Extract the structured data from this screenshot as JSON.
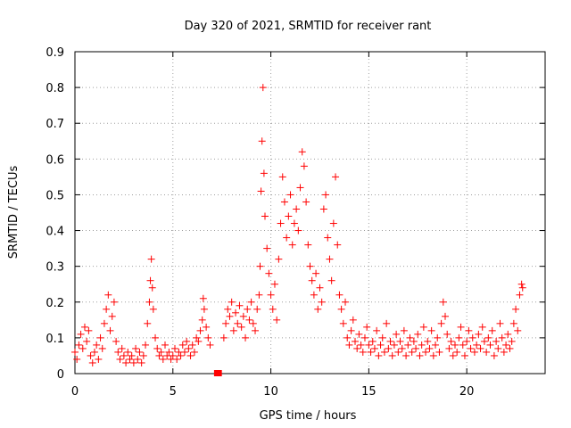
{
  "chart_data": {
    "type": "scatter",
    "title": "Day 320 of 2021, SRMTID for receiver rant",
    "xlabel": "GPS time / hours",
    "ylabel": "SRMTID / TECUs",
    "xlim": [
      0,
      24
    ],
    "ylim": [
      0,
      0.9
    ],
    "xticks": [
      0,
      5,
      10,
      15,
      20
    ],
    "xtick_labels": [
      "0",
      "5",
      "10",
      "15",
      "20"
    ],
    "yticks": [
      0,
      0.1,
      0.2,
      0.3,
      0.4,
      0.5,
      0.6,
      0.7,
      0.8,
      0.9
    ],
    "ytick_labels": [
      "0",
      "0.1",
      "0.2",
      "0.3",
      "0.4",
      "0.5",
      "0.6",
      "0.7",
      "0.8",
      "0.9"
    ],
    "grid": true,
    "marker": "+",
    "marker_color": "#ff0000",
    "data_gap_marker": {
      "x": [
        7.1,
        7.5
      ],
      "y": 0,
      "color": "#ff0000"
    },
    "series": [
      {
        "name": "SRMTID",
        "points": [
          [
            0.0,
            0.06
          ],
          [
            0.1,
            0.04
          ],
          [
            0.2,
            0.08
          ],
          [
            0.3,
            0.11
          ],
          [
            0.4,
            0.07
          ],
          [
            0.5,
            0.13
          ],
          [
            0.6,
            0.09
          ],
          [
            0.7,
            0.12
          ],
          [
            0.8,
            0.05
          ],
          [
            0.9,
            0.03
          ],
          [
            1.0,
            0.06
          ],
          [
            1.1,
            0.08
          ],
          [
            1.2,
            0.04
          ],
          [
            1.3,
            0.1
          ],
          [
            1.4,
            0.07
          ],
          [
            1.5,
            0.14
          ],
          [
            1.6,
            0.18
          ],
          [
            1.7,
            0.22
          ],
          [
            1.8,
            0.12
          ],
          [
            1.9,
            0.16
          ],
          [
            2.0,
            0.2
          ],
          [
            2.1,
            0.09
          ],
          [
            2.2,
            0.06
          ],
          [
            2.3,
            0.04
          ],
          [
            2.4,
            0.07
          ],
          [
            2.5,
            0.05
          ],
          [
            2.6,
            0.03
          ],
          [
            2.7,
            0.06
          ],
          [
            2.8,
            0.04
          ],
          [
            2.9,
            0.05
          ],
          [
            3.0,
            0.03
          ],
          [
            3.1,
            0.07
          ],
          [
            3.2,
            0.04
          ],
          [
            3.3,
            0.06
          ],
          [
            3.4,
            0.03
          ],
          [
            3.5,
            0.05
          ],
          [
            3.6,
            0.08
          ],
          [
            3.7,
            0.14
          ],
          [
            3.8,
            0.2
          ],
          [
            3.85,
            0.26
          ],
          [
            3.9,
            0.32
          ],
          [
            3.95,
            0.24
          ],
          [
            4.0,
            0.18
          ],
          [
            4.1,
            0.1
          ],
          [
            4.2,
            0.07
          ],
          [
            4.3,
            0.05
          ],
          [
            4.4,
            0.06
          ],
          [
            4.5,
            0.04
          ],
          [
            4.6,
            0.08
          ],
          [
            4.7,
            0.05
          ],
          [
            4.8,
            0.06
          ],
          [
            4.9,
            0.04
          ],
          [
            5.0,
            0.05
          ],
          [
            5.1,
            0.07
          ],
          [
            5.2,
            0.04
          ],
          [
            5.3,
            0.06
          ],
          [
            5.4,
            0.05
          ],
          [
            5.5,
            0.08
          ],
          [
            5.6,
            0.06
          ],
          [
            5.7,
            0.09
          ],
          [
            5.8,
            0.07
          ],
          [
            5.9,
            0.05
          ],
          [
            6.0,
            0.08
          ],
          [
            6.1,
            0.06
          ],
          [
            6.2,
            0.1
          ],
          [
            6.3,
            0.09
          ],
          [
            6.4,
            0.12
          ],
          [
            6.5,
            0.15
          ],
          [
            6.55,
            0.21
          ],
          [
            6.6,
            0.18
          ],
          [
            6.7,
            0.13
          ],
          [
            6.8,
            0.1
          ],
          [
            6.9,
            0.08
          ],
          [
            7.6,
            0.1
          ],
          [
            7.7,
            0.14
          ],
          [
            7.8,
            0.18
          ],
          [
            7.9,
            0.16
          ],
          [
            8.0,
            0.2
          ],
          [
            8.1,
            0.12
          ],
          [
            8.2,
            0.17
          ],
          [
            8.3,
            0.14
          ],
          [
            8.4,
            0.19
          ],
          [
            8.5,
            0.13
          ],
          [
            8.6,
            0.16
          ],
          [
            8.7,
            0.1
          ],
          [
            8.8,
            0.18
          ],
          [
            8.9,
            0.15
          ],
          [
            9.0,
            0.2
          ],
          [
            9.1,
            0.14
          ],
          [
            9.2,
            0.12
          ],
          [
            9.3,
            0.18
          ],
          [
            9.4,
            0.22
          ],
          [
            9.45,
            0.3
          ],
          [
            9.5,
            0.51
          ],
          [
            9.55,
            0.65
          ],
          [
            9.6,
            0.8
          ],
          [
            9.65,
            0.56
          ],
          [
            9.7,
            0.44
          ],
          [
            9.8,
            0.35
          ],
          [
            9.9,
            0.28
          ],
          [
            10.0,
            0.22
          ],
          [
            10.1,
            0.18
          ],
          [
            10.2,
            0.25
          ],
          [
            10.3,
            0.15
          ],
          [
            10.4,
            0.32
          ],
          [
            10.5,
            0.42
          ],
          [
            10.6,
            0.55
          ],
          [
            10.7,
            0.48
          ],
          [
            10.8,
            0.38
          ],
          [
            10.9,
            0.44
          ],
          [
            11.0,
            0.5
          ],
          [
            11.1,
            0.36
          ],
          [
            11.2,
            0.42
          ],
          [
            11.3,
            0.46
          ],
          [
            11.4,
            0.4
          ],
          [
            11.5,
            0.52
          ],
          [
            11.6,
            0.62
          ],
          [
            11.7,
            0.58
          ],
          [
            11.8,
            0.48
          ],
          [
            11.9,
            0.36
          ],
          [
            12.0,
            0.3
          ],
          [
            12.1,
            0.26
          ],
          [
            12.2,
            0.22
          ],
          [
            12.3,
            0.28
          ],
          [
            12.4,
            0.18
          ],
          [
            12.5,
            0.24
          ],
          [
            12.6,
            0.2
          ],
          [
            12.7,
            0.46
          ],
          [
            12.8,
            0.5
          ],
          [
            12.9,
            0.38
          ],
          [
            13.0,
            0.32
          ],
          [
            13.1,
            0.26
          ],
          [
            13.2,
            0.42
          ],
          [
            13.3,
            0.55
          ],
          [
            13.4,
            0.36
          ],
          [
            13.5,
            0.22
          ],
          [
            13.6,
            0.18
          ],
          [
            13.7,
            0.14
          ],
          [
            13.8,
            0.2
          ],
          [
            13.9,
            0.1
          ],
          [
            14.0,
            0.08
          ],
          [
            14.1,
            0.12
          ],
          [
            14.2,
            0.15
          ],
          [
            14.3,
            0.09
          ],
          [
            14.4,
            0.07
          ],
          [
            14.5,
            0.11
          ],
          [
            14.6,
            0.08
          ],
          [
            14.7,
            0.06
          ],
          [
            14.8,
            0.1
          ],
          [
            14.9,
            0.13
          ],
          [
            15.0,
            0.08
          ],
          [
            15.1,
            0.06
          ],
          [
            15.2,
            0.09
          ],
          [
            15.3,
            0.07
          ],
          [
            15.4,
            0.12
          ],
          [
            15.5,
            0.05
          ],
          [
            15.6,
            0.08
          ],
          [
            15.7,
            0.1
          ],
          [
            15.8,
            0.06
          ],
          [
            15.9,
            0.14
          ],
          [
            16.0,
            0.07
          ],
          [
            16.1,
            0.09
          ],
          [
            16.2,
            0.05
          ],
          [
            16.3,
            0.08
          ],
          [
            16.4,
            0.11
          ],
          [
            16.5,
            0.06
          ],
          [
            16.6,
            0.09
          ],
          [
            16.7,
            0.07
          ],
          [
            16.8,
            0.12
          ],
          [
            16.9,
            0.05
          ],
          [
            17.0,
            0.08
          ],
          [
            17.1,
            0.1
          ],
          [
            17.2,
            0.06
          ],
          [
            17.3,
            0.09
          ],
          [
            17.4,
            0.07
          ],
          [
            17.5,
            0.11
          ],
          [
            17.6,
            0.05
          ],
          [
            17.7,
            0.08
          ],
          [
            17.8,
            0.13
          ],
          [
            17.9,
            0.06
          ],
          [
            18.0,
            0.09
          ],
          [
            18.1,
            0.07
          ],
          [
            18.2,
            0.12
          ],
          [
            18.3,
            0.05
          ],
          [
            18.4,
            0.08
          ],
          [
            18.5,
            0.1
          ],
          [
            18.6,
            0.06
          ],
          [
            18.7,
            0.14
          ],
          [
            18.8,
            0.2
          ],
          [
            18.9,
            0.16
          ],
          [
            19.0,
            0.11
          ],
          [
            19.1,
            0.07
          ],
          [
            19.2,
            0.09
          ],
          [
            19.3,
            0.05
          ],
          [
            19.4,
            0.08
          ],
          [
            19.5,
            0.06
          ],
          [
            19.6,
            0.1
          ],
          [
            19.7,
            0.13
          ],
          [
            19.8,
            0.08
          ],
          [
            19.9,
            0.05
          ],
          [
            20.0,
            0.09
          ],
          [
            20.1,
            0.12
          ],
          [
            20.2,
            0.07
          ],
          [
            20.3,
            0.1
          ],
          [
            20.4,
            0.06
          ],
          [
            20.5,
            0.08
          ],
          [
            20.6,
            0.11
          ],
          [
            20.7,
            0.07
          ],
          [
            20.8,
            0.13
          ],
          [
            20.9,
            0.09
          ],
          [
            21.0,
            0.06
          ],
          [
            21.1,
            0.1
          ],
          [
            21.2,
            0.08
          ],
          [
            21.3,
            0.12
          ],
          [
            21.4,
            0.05
          ],
          [
            21.5,
            0.09
          ],
          [
            21.6,
            0.07
          ],
          [
            21.7,
            0.14
          ],
          [
            21.8,
            0.1
          ],
          [
            21.9,
            0.06
          ],
          [
            22.0,
            0.08
          ],
          [
            22.1,
            0.11
          ],
          [
            22.2,
            0.07
          ],
          [
            22.3,
            0.09
          ],
          [
            22.4,
            0.14
          ],
          [
            22.5,
            0.18
          ],
          [
            22.6,
            0.12
          ],
          [
            22.7,
            0.22
          ],
          [
            22.8,
            0.25
          ],
          [
            22.85,
            0.24
          ]
        ]
      }
    ]
  }
}
